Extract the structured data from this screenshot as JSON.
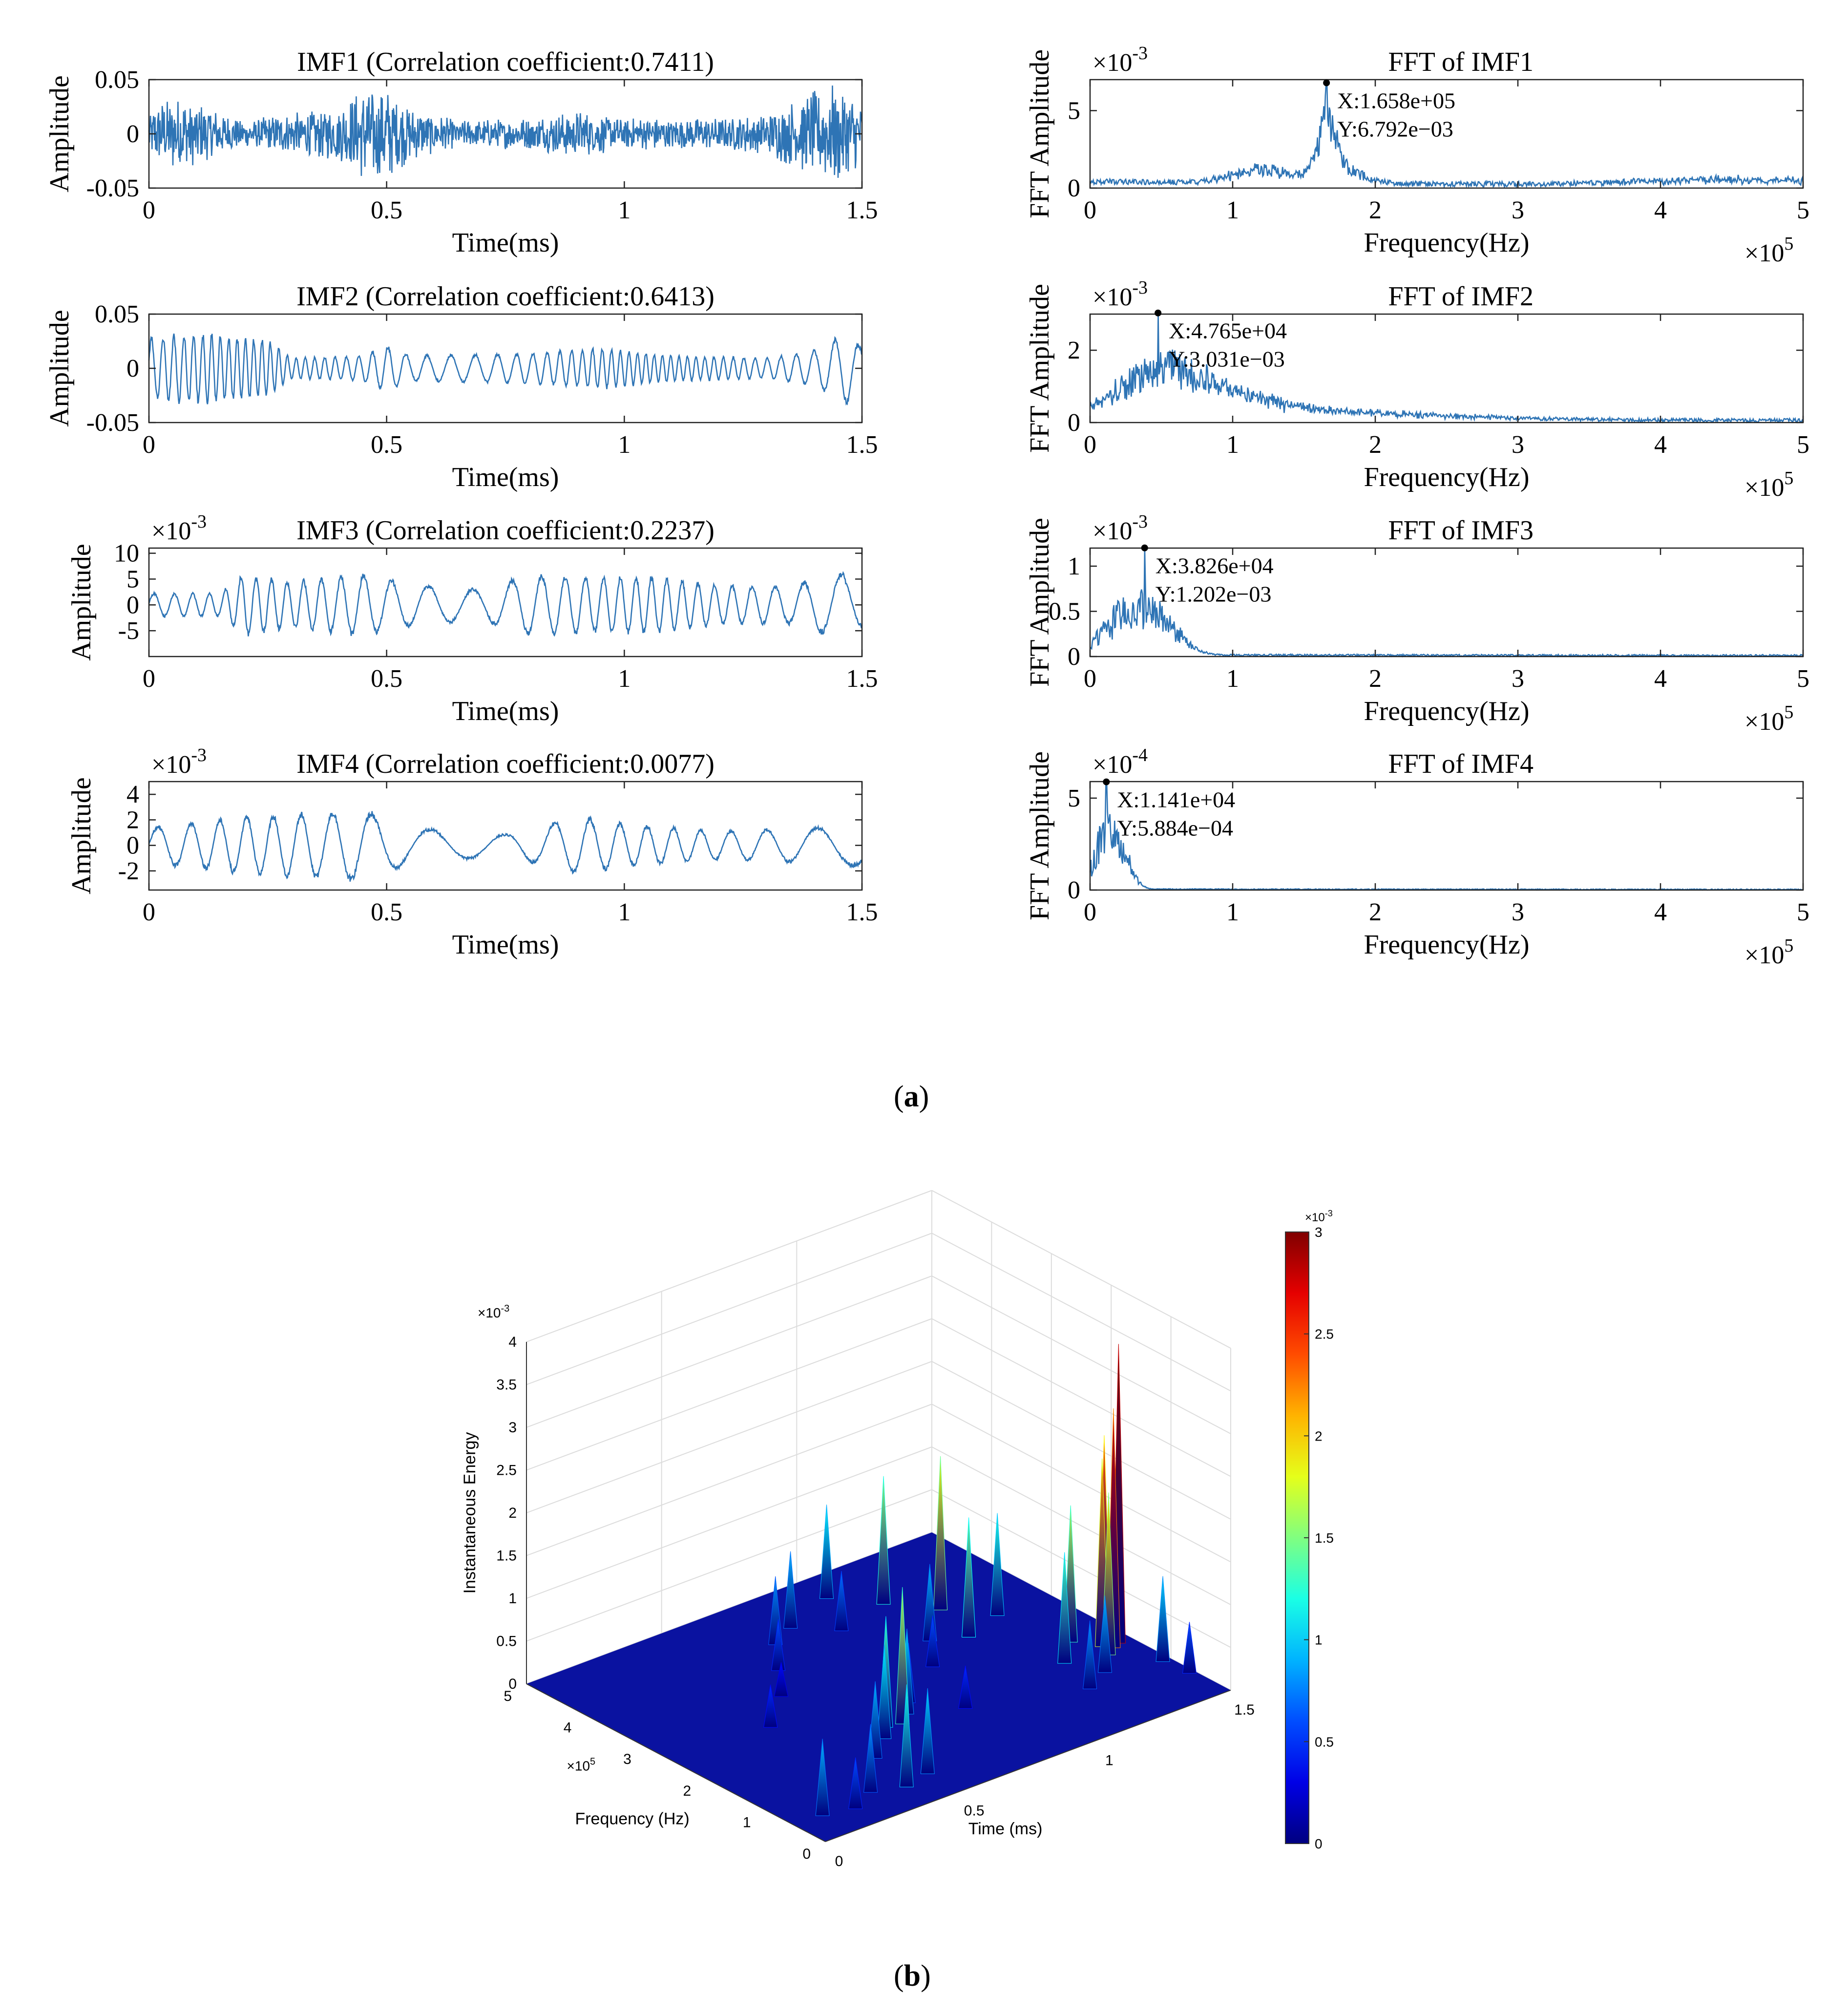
{
  "figure": {
    "caption_a_open": "(",
    "caption_a_letter": "a",
    "caption_a_close": ")",
    "caption_b_open": "(",
    "caption_b_letter": "b",
    "caption_b_close": ")"
  },
  "colors": {
    "line": "#2e74b5",
    "axis": "#222222",
    "grid": "#d9d9d9"
  },
  "chart_data": [
    {
      "id": "imf1",
      "type": "line",
      "title": "IMF1 (Correlation coefficient:0.7411)",
      "xlabel": "Time(ms)",
      "ylabel": "Amplitude",
      "exponent": "",
      "xlim": [
        0,
        1.5
      ],
      "ylim": [
        -0.05,
        0.05
      ],
      "xticks": [
        0,
        0.5,
        1,
        1.5
      ],
      "xtick_labels": [
        "0",
        "0.5",
        "1",
        "1.5"
      ],
      "yticks": [
        -0.05,
        0,
        0.05
      ],
      "ytick_labels": [
        "-0.05",
        "0",
        "0.05"
      ],
      "signal": {
        "kind": "noise",
        "amp": 0.05,
        "env": [
          [
            0,
            0.45
          ],
          [
            0.05,
            0.75
          ],
          [
            0.1,
            0.6
          ],
          [
            0.2,
            0.25
          ],
          [
            0.3,
            0.4
          ],
          [
            0.4,
            0.55
          ],
          [
            0.45,
            0.85
          ],
          [
            0.5,
            0.9
          ],
          [
            0.55,
            0.5
          ],
          [
            0.65,
            0.25
          ],
          [
            0.8,
            0.3
          ],
          [
            0.9,
            0.45
          ],
          [
            1.0,
            0.3
          ],
          [
            1.2,
            0.3
          ],
          [
            1.3,
            0.4
          ],
          [
            1.38,
            0.75
          ],
          [
            1.45,
            0.95
          ],
          [
            1.5,
            0.6
          ]
        ]
      }
    },
    {
      "id": "imf2",
      "type": "line",
      "title": "IMF2 (Correlation coefficient:0.6413)",
      "xlabel": "Time(ms)",
      "ylabel": "Amplitude",
      "exponent": "",
      "xlim": [
        0,
        1.5
      ],
      "ylim": [
        -0.05,
        0.05
      ],
      "xticks": [
        0,
        0.5,
        1,
        1.5
      ],
      "xtick_labels": [
        "0",
        "0.5",
        "1",
        "1.5"
      ],
      "yticks": [
        -0.05,
        0,
        0.05
      ],
      "ytick_labels": [
        "-0.05",
        "0",
        "0.05"
      ],
      "signal": {
        "kind": "osc",
        "amp": 0.05,
        "freq": 48,
        "env": [
          [
            0,
            0.6
          ],
          [
            0.1,
            0.7
          ],
          [
            0.2,
            0.6
          ],
          [
            0.25,
            0.55
          ],
          [
            0.3,
            0.2
          ],
          [
            0.45,
            0.25
          ],
          [
            0.5,
            0.45
          ],
          [
            0.55,
            0.25
          ],
          [
            0.8,
            0.3
          ],
          [
            0.95,
            0.4
          ],
          [
            1.1,
            0.25
          ],
          [
            1.3,
            0.2
          ],
          [
            1.4,
            0.35
          ],
          [
            1.47,
            0.7
          ],
          [
            1.5,
            0.4
          ]
        ]
      }
    },
    {
      "id": "imf3",
      "type": "line",
      "title": "IMF3 (Correlation coefficient:0.2237)",
      "xlabel": "Time(ms)",
      "ylabel": "Amplitude",
      "exponent": "-3",
      "xlim": [
        0,
        1.5
      ],
      "ylim": [
        -10,
        11
      ],
      "xticks": [
        0,
        0.5,
        1,
        1.5
      ],
      "xtick_labels": [
        "0",
        "0.5",
        "1",
        "1.5"
      ],
      "yticks": [
        -5,
        0,
        5,
        10
      ],
      "ytick_labels": [
        "-5",
        "0",
        "5",
        "10"
      ],
      "signal": {
        "kind": "osc",
        "amp": 8,
        "freq": 26,
        "env": [
          [
            0,
            0.3
          ],
          [
            0.15,
            0.3
          ],
          [
            0.2,
            0.8
          ],
          [
            0.3,
            0.6
          ],
          [
            0.45,
            0.8
          ],
          [
            0.55,
            0.55
          ],
          [
            0.7,
            0.4
          ],
          [
            0.8,
            0.8
          ],
          [
            0.95,
            0.7
          ],
          [
            1.05,
            0.75
          ],
          [
            1.2,
            0.5
          ],
          [
            1.35,
            0.5
          ],
          [
            1.45,
            0.85
          ],
          [
            1.5,
            0.6
          ]
        ]
      }
    },
    {
      "id": "imf4",
      "type": "line",
      "title": "IMF4 (Correlation coefficient:0.0077)",
      "xlabel": "Time(ms)",
      "ylabel": "Amplitude",
      "exponent": "-3",
      "xlim": [
        0,
        1.5
      ],
      "ylim": [
        -3.5,
        5
      ],
      "xticks": [
        0,
        0.5,
        1,
        1.5
      ],
      "xtick_labels": [
        "0",
        "0.5",
        "1",
        "1.5"
      ],
      "yticks": [
        -2,
        0,
        2,
        4
      ],
      "ytick_labels": [
        "-2",
        "0",
        "2",
        "4"
      ],
      "signal": {
        "kind": "osc",
        "amp": 3,
        "freq": 15,
        "env": [
          [
            0,
            0.5
          ],
          [
            0.2,
            0.8
          ],
          [
            0.35,
            0.9
          ],
          [
            0.45,
            1.0
          ],
          [
            0.55,
            0.5
          ],
          [
            0.75,
            0.3
          ],
          [
            0.9,
            0.8
          ],
          [
            1.0,
            0.6
          ],
          [
            1.2,
            0.4
          ],
          [
            1.4,
            0.5
          ],
          [
            1.5,
            0.6
          ]
        ]
      }
    },
    {
      "id": "fft1",
      "type": "line",
      "title": "FFT of IMF1",
      "xlabel": "Frequency(Hz)",
      "ylabel": "FFT Amplitude",
      "exponent": "-3",
      "x_exponent": "5",
      "xlim": [
        0,
        500000
      ],
      "ylim": [
        0,
        7
      ],
      "xticks": [
        0,
        100000,
        200000,
        300000,
        400000,
        500000
      ],
      "xtick_labels": [
        "0",
        "1",
        "2",
        "3",
        "4",
        "5"
      ],
      "yticks": [
        0,
        5
      ],
      "ytick_labels": [
        "0",
        "5"
      ],
      "peak": {
        "x": 165800,
        "y": 6.792,
        "label_x": "X:1.658e+05",
        "label_y": "Y:6.792e−03"
      },
      "spectrum": {
        "base": 0.25,
        "noise": 0.35,
        "bumps": [
          [
            120000,
            20000,
            1.0
          ],
          [
            165800,
            6000,
            4.5
          ],
          [
            175000,
            15000,
            1.2
          ],
          [
            450000,
            60000,
            0.4
          ]
        ]
      }
    },
    {
      "id": "fft2",
      "type": "line",
      "title": "FFT of IMF2",
      "xlabel": "Frequency(Hz)",
      "ylabel": "FFT Amplitude",
      "exponent": "-3",
      "x_exponent": "5",
      "xlim": [
        0,
        500000
      ],
      "ylim": [
        0,
        3
      ],
      "xticks": [
        0,
        100000,
        200000,
        300000,
        400000,
        500000
      ],
      "xtick_labels": [
        "0",
        "1",
        "2",
        "3",
        "4",
        "5"
      ],
      "yticks": [
        0,
        2
      ],
      "ytick_labels": [
        "0",
        "2"
      ],
      "peak": {
        "x": 47650,
        "y": 3.031,
        "label_x": "X:4.765e+04",
        "label_y": "Y:3.031e−03"
      },
      "spectrum": {
        "base": 0.08,
        "noise": 0.1,
        "bumps": [
          [
            50000,
            30000,
            1.4
          ],
          [
            100000,
            40000,
            0.5
          ],
          [
            180000,
            80000,
            0.2
          ]
        ]
      }
    },
    {
      "id": "fft3",
      "type": "line",
      "title": "FFT of IMF3",
      "xlabel": "Frequency(Hz)",
      "ylabel": "FFT Amplitude",
      "exponent": "-3",
      "x_exponent": "5",
      "xlim": [
        0,
        500000
      ],
      "ylim": [
        0,
        1.2
      ],
      "xticks": [
        0,
        100000,
        200000,
        300000,
        400000,
        500000
      ],
      "xtick_labels": [
        "0",
        "1",
        "2",
        "3",
        "4",
        "5"
      ],
      "yticks": [
        0,
        0.5,
        1
      ],
      "ytick_labels": [
        "0",
        "0.5",
        "1"
      ],
      "peak": {
        "x": 38260,
        "y": 1.202,
        "label_x": "X:3.826e+04",
        "label_y": "Y:1.202e−03"
      },
      "spectrum": {
        "base": 0.01,
        "noise": 0.02,
        "bumps": [
          [
            30000,
            18000,
            0.6
          ],
          [
            55000,
            12000,
            0.2
          ]
        ]
      }
    },
    {
      "id": "fft4",
      "type": "line",
      "title": "FFT of IMF4",
      "xlabel": "Frequency(Hz)",
      "ylabel": "FFT Amplitude",
      "exponent": "-4",
      "x_exponent": "5",
      "xlim": [
        0,
        500000
      ],
      "ylim": [
        0,
        5.9
      ],
      "xticks": [
        0,
        100000,
        200000,
        300000,
        400000,
        500000
      ],
      "xtick_labels": [
        "0",
        "1",
        "2",
        "3",
        "4",
        "5"
      ],
      "yticks": [
        0,
        5
      ],
      "ytick_labels": [
        "0",
        "5"
      ],
      "peak": {
        "x": 11410,
        "y": 5.884,
        "label_x": "X:1.141e+04",
        "label_y": "Y:5.884e−04"
      },
      "spectrum": {
        "base": 0.03,
        "noise": 0.05,
        "bumps": [
          [
            12000,
            9000,
            3.5
          ],
          [
            25000,
            6000,
            1.0
          ]
        ]
      }
    },
    {
      "id": "hht3d",
      "type": "surface",
      "xlabel": "Time (ms)",
      "ylabel": "Frequency (Hz)",
      "zlabel": "Instantaneous Energy",
      "xlim": [
        0,
        1.5
      ],
      "ylim": [
        0,
        500000
      ],
      "zlim": [
        0,
        0.004
      ],
      "xticks": [
        0,
        0.5,
        1,
        1.5
      ],
      "xtick_labels": [
        "0",
        "0.5",
        "1",
        "1.5"
      ],
      "yticks": [
        0,
        100000,
        200000,
        300000,
        400000,
        500000
      ],
      "ytick_labels": [
        "0",
        "1",
        "2",
        "3",
        "4",
        "5"
      ],
      "y_exponent": "5",
      "zticks": [
        0,
        0.0005,
        0.001,
        0.0015,
        0.002,
        0.0025,
        0.003,
        0.0035,
        0.004
      ],
      "ztick_labels": [
        "0",
        "0.5",
        "1",
        "1.5",
        "2",
        "2.5",
        "3",
        "3.5",
        "4"
      ],
      "z_exponent": "-3",
      "colorbar": {
        "min": 0,
        "max": 0.003,
        "ticks": [
          0,
          0.0005,
          0.001,
          0.0015,
          0.002,
          0.0025,
          0.003
        ],
        "tick_labels": [
          "0",
          "0.5",
          "1",
          "1.5",
          "2",
          "2.5",
          "3"
        ],
        "exponent": "-3"
      },
      "energy_spikes": [
        {
          "t": 0.1,
          "f": 50000,
          "e": 0.0009
        },
        {
          "t": 0.2,
          "f": 40000,
          "e": 0.0006
        },
        {
          "t": 0.3,
          "f": 60000,
          "e": 0.0008
        },
        {
          "t": 0.4,
          "f": 45000,
          "e": 0.0012
        },
        {
          "t": 0.5,
          "f": 55000,
          "e": 0.001
        },
        {
          "t": 0.45,
          "f": 120000,
          "e": 0.0009
        },
        {
          "t": 0.55,
          "f": 150000,
          "e": 0.0011
        },
        {
          "t": 0.6,
          "f": 170000,
          "e": 0.0013
        },
        {
          "t": 0.65,
          "f": 165000,
          "e": 0.0016
        },
        {
          "t": 0.7,
          "f": 180000,
          "e": 0.001
        },
        {
          "t": 0.75,
          "f": 200000,
          "e": 0.0007
        },
        {
          "t": 0.35,
          "f": 250000,
          "e": 0.0005
        },
        {
          "t": 0.5,
          "f": 300000,
          "e": 0.0004
        },
        {
          "t": 0.6,
          "f": 350000,
          "e": 0.0006
        },
        {
          "t": 0.7,
          "f": 400000,
          "e": 0.0008
        },
        {
          "t": 0.8,
          "f": 420000,
          "e": 0.0009
        },
        {
          "t": 0.9,
          "f": 380000,
          "e": 0.0007
        },
        {
          "t": 1.0,
          "f": 450000,
          "e": 0.0011
        },
        {
          "t": 1.1,
          "f": 400000,
          "e": 0.0015
        },
        {
          "t": 1.2,
          "f": 350000,
          "e": 0.0018
        },
        {
          "t": 1.3,
          "f": 300000,
          "e": 0.0012
        },
        {
          "t": 1.35,
          "f": 200000,
          "e": 0.0016
        },
        {
          "t": 1.4,
          "f": 170000,
          "e": 0.0022
        },
        {
          "t": 1.42,
          "f": 160000,
          "e": 0.0028
        },
        {
          "t": 1.45,
          "f": 165000,
          "e": 0.0035
        },
        {
          "t": 1.43,
          "f": 180000,
          "e": 0.0024
        },
        {
          "t": 1.38,
          "f": 150000,
          "e": 0.0019
        },
        {
          "t": 1.25,
          "f": 165000,
          "e": 0.0013
        },
        {
          "t": 1.3,
          "f": 120000,
          "e": 0.0009
        },
        {
          "t": 1.2,
          "f": 100000,
          "e": 0.0008
        },
        {
          "t": 1.47,
          "f": 100000,
          "e": 0.001
        },
        {
          "t": 1.48,
          "f": 60000,
          "e": 0.0006
        },
        {
          "t": 0.95,
          "f": 250000,
          "e": 0.0006
        },
        {
          "t": 1.05,
          "f": 300000,
          "e": 0.0009
        },
        {
          "t": 1.15,
          "f": 280000,
          "e": 0.0014
        },
        {
          "t": 0.85,
          "f": 150000,
          "e": 0.0005
        }
      ]
    }
  ]
}
